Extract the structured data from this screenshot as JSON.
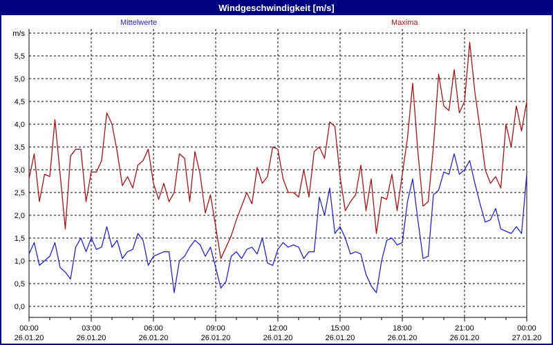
{
  "title": "Windgeschwindigkeit [m/s]",
  "legend": [
    {
      "label": "Mittelwerte",
      "color": "#2222c8"
    },
    {
      "label": "Maxima",
      "color": "#a51212"
    }
  ],
  "axes": {
    "y_axis_unit": "m/s",
    "y_tick_labels": [
      "0,0",
      "0,5",
      "1,0",
      "1,5",
      "2,0",
      "2,5",
      "3,0",
      "3,5",
      "4,0",
      "4,5",
      "5,0",
      "5,5"
    ],
    "x_ticks": [
      {
        "time": "00:00",
        "date": "26.01.20"
      },
      {
        "time": "03:00",
        "date": "26.01.20"
      },
      {
        "time": "06:00",
        "date": "26.01.20"
      },
      {
        "time": "09:00",
        "date": "26.01.20"
      },
      {
        "time": "12:00",
        "date": "26.01.20"
      },
      {
        "time": "15:00",
        "date": "26.01.20"
      },
      {
        "time": "18:00",
        "date": "26.01.20"
      },
      {
        "time": "21:00",
        "date": "26.01.20"
      },
      {
        "time": "00:00",
        "date": "27.01.20"
      }
    ]
  },
  "chart_data": {
    "type": "line",
    "title": "Windgeschwindigkeit [m/s]",
    "ylabel": "m/s",
    "ylim": [
      0,
      6
    ],
    "grid": "dashed",
    "x_start": "26.01.20 00:00",
    "x_end": "27.01.20 00:00",
    "interval_minutes": 15,
    "series": [
      {
        "name": "Mittelwerte",
        "color": "#2222c8",
        "values": [
          1.15,
          1.4,
          0.9,
          1.0,
          1.1,
          1.4,
          0.85,
          0.75,
          0.6,
          1.3,
          1.5,
          1.2,
          1.5,
          1.25,
          1.3,
          1.75,
          1.3,
          1.45,
          1.05,
          1.2,
          1.25,
          1.6,
          1.45,
          0.9,
          1.1,
          1.15,
          1.2,
          1.2,
          0.3,
          1.0,
          1.1,
          1.3,
          1.45,
          1.35,
          1.1,
          1.3,
          0.85,
          0.4,
          0.55,
          1.1,
          1.2,
          1.05,
          1.25,
          1.3,
          1.15,
          1.5,
          0.95,
          0.9,
          1.25,
          1.4,
          1.3,
          1.35,
          1.3,
          1.05,
          1.2,
          1.2,
          2.4,
          2.0,
          2.6,
          1.6,
          1.75,
          1.5,
          1.15,
          1.2,
          1.15,
          0.7,
          0.45,
          0.3,
          1.0,
          1.45,
          1.5,
          1.35,
          1.4,
          2.3,
          2.8,
          1.9,
          1.05,
          1.1,
          2.45,
          2.55,
          2.95,
          2.9,
          3.35,
          2.9,
          3.0,
          3.2,
          2.7,
          2.25,
          1.85,
          1.9,
          2.15,
          1.7,
          1.65,
          1.6,
          1.75,
          1.6,
          2.9
        ]
      },
      {
        "name": "Maxima",
        "color": "#a51212",
        "values": [
          2.8,
          3.35,
          2.3,
          2.9,
          2.85,
          4.1,
          2.9,
          1.7,
          3.3,
          3.45,
          3.45,
          2.3,
          2.95,
          2.95,
          3.2,
          4.25,
          4.0,
          3.4,
          2.65,
          2.85,
          2.6,
          3.1,
          3.2,
          3.45,
          2.7,
          2.35,
          2.7,
          2.3,
          2.5,
          3.35,
          3.25,
          2.3,
          3.4,
          2.9,
          2.05,
          2.45,
          1.75,
          1.05,
          1.3,
          1.55,
          1.9,
          2.2,
          2.5,
          2.25,
          3.05,
          2.7,
          2.85,
          3.5,
          3.45,
          2.8,
          2.5,
          2.5,
          2.4,
          3.0,
          2.4,
          3.4,
          3.5,
          3.25,
          4.05,
          3.95,
          2.85,
          2.1,
          2.3,
          2.45,
          3.1,
          2.1,
          2.8,
          1.6,
          2.4,
          2.35,
          2.9,
          2.1,
          2.9,
          3.7,
          4.9,
          3.4,
          2.2,
          2.3,
          3.5,
          5.1,
          4.4,
          4.3,
          5.2,
          4.25,
          4.5,
          5.8,
          4.7,
          3.9,
          3.0,
          2.7,
          2.85,
          2.6,
          4.0,
          3.5,
          4.4,
          3.85,
          4.5
        ]
      }
    ]
  }
}
